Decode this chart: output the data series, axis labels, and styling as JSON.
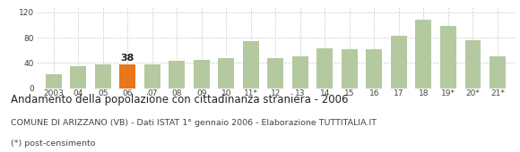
{
  "categories": [
    "2003",
    "04",
    "05",
    "06",
    "07",
    "08",
    "09",
    "10",
    "11*",
    "12",
    "13",
    "14",
    "15",
    "16",
    "17",
    "18",
    "19*",
    "20*",
    "21*"
  ],
  "values": [
    22,
    35,
    38,
    38,
    38,
    43,
    45,
    48,
    75,
    48,
    50,
    63,
    62,
    62,
    83,
    108,
    98,
    76,
    50
  ],
  "highlight_index": 3,
  "highlight_value": 38,
  "bar_color_normal": "#b5c9a0",
  "bar_color_highlight": "#e8761a",
  "title": "Andamento della popolazione con cittadinanza straniera - 2006",
  "subtitle": "COMUNE DI ARIZZANO (VB) - Dati ISTAT 1° gennaio 2006 - Elaborazione TUTTITALIA.IT",
  "footnote": "(*) post-censimento",
  "ylim": [
    0,
    130
  ],
  "yticks": [
    0,
    40,
    80,
    120
  ],
  "grid_color": "#cccccc",
  "background_color": "#ffffff",
  "title_fontsize": 8.5,
  "subtitle_fontsize": 6.8,
  "footnote_fontsize": 6.8,
  "tick_fontsize": 6.5,
  "annotation_fontsize": 8
}
